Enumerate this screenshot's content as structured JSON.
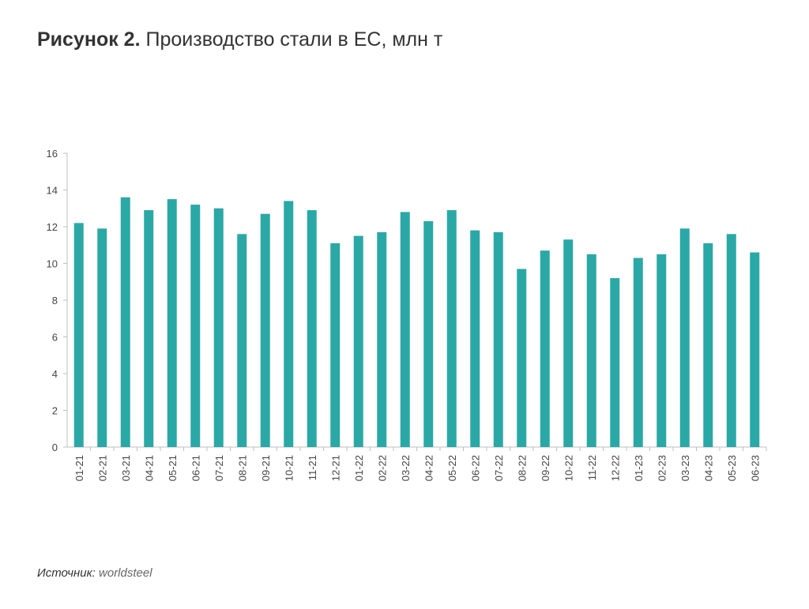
{
  "title": {
    "lead": "Рисунок 2.",
    "text": "Производство стали в ЕС, млн т"
  },
  "source": {
    "label": "Источник:",
    "value": "worldsteel"
  },
  "colors": {
    "bar": "#2AA8A6",
    "axis": "#bfbfbf",
    "text": "#333333"
  },
  "chart_data": {
    "type": "bar",
    "title": "Производство стали в ЕС, млн т",
    "xlabel": "",
    "ylabel": "",
    "ylim": [
      0,
      16
    ],
    "yticks": [
      0,
      2,
      4,
      6,
      8,
      10,
      12,
      14,
      16
    ],
    "grid": false,
    "legend": "none",
    "categories": [
      "01-21",
      "02-21",
      "03-21",
      "04-21",
      "05-21",
      "06-21",
      "07-21",
      "08-21",
      "09-21",
      "10-21",
      "11-21",
      "12-21",
      "01-22",
      "02-22",
      "03-22",
      "04-22",
      "05-22",
      "06-22",
      "07-22",
      "08-22",
      "09-22",
      "10-22",
      "11-22",
      "12-22",
      "01-23",
      "02-23",
      "03-23",
      "04-23",
      "05-23",
      "06-23"
    ],
    "values": [
      12.2,
      11.9,
      13.6,
      12.9,
      13.5,
      13.2,
      13.0,
      11.6,
      12.7,
      13.4,
      12.9,
      11.1,
      11.5,
      11.7,
      12.8,
      12.3,
      12.9,
      11.8,
      11.7,
      9.7,
      10.7,
      11.3,
      10.5,
      9.2,
      10.3,
      10.5,
      11.9,
      11.1,
      11.6,
      10.6
    ]
  }
}
